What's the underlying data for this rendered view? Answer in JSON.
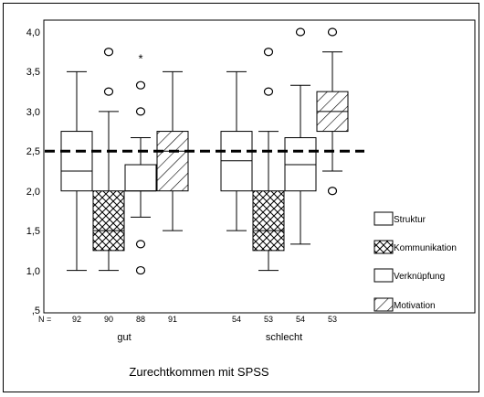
{
  "chart_data": {
    "type": "boxplot",
    "title": "Zurechtkommen mit SPSS",
    "ylim": [
      0.5,
      4.0
    ],
    "yticks": [
      "4,0",
      "3,5",
      "3,0",
      "2,5",
      "2,0",
      "1,5",
      "1,0",
      ",5"
    ],
    "ytick_values": [
      4.0,
      3.5,
      3.0,
      2.5,
      2.0,
      1.5,
      1.0,
      0.5
    ],
    "n_label": "N =",
    "reference_line": 2.5,
    "legend_position": "right",
    "series": [
      {
        "name": "Struktur",
        "pattern": "plain"
      },
      {
        "name": "Kommunikation",
        "pattern": "crosshatch"
      },
      {
        "name": "Verknüpfung",
        "pattern": "plain"
      },
      {
        "name": "Motivation",
        "pattern": "diagonal"
      }
    ],
    "groups": [
      {
        "label": "gut",
        "boxes": [
          {
            "series": "Struktur",
            "n": "92",
            "min": 1.0,
            "q1": 2.0,
            "median": 2.25,
            "q3": 2.75,
            "max": 3.5,
            "outliers": [],
            "extremes": []
          },
          {
            "series": "Kommunikation",
            "n": "90",
            "min": 1.0,
            "q1": 1.25,
            "median": 1.5,
            "q3": 2.0,
            "max": 3.0,
            "outliers": [
              3.25,
              3.75
            ],
            "extremes": []
          },
          {
            "series": "Verknüpfung",
            "n": "88",
            "min": 1.67,
            "q1": 2.0,
            "median": 2.0,
            "q3": 2.33,
            "max": 2.67,
            "outliers": [
              3.0,
              3.33,
              1.33,
              1.0
            ],
            "extremes": [
              3.67
            ]
          },
          {
            "series": "Motivation",
            "n": "91",
            "min": 1.5,
            "q1": 2.0,
            "median": 2.5,
            "q3": 2.75,
            "max": 3.5,
            "outliers": [],
            "extremes": []
          }
        ]
      },
      {
        "label": "schlecht",
        "boxes": [
          {
            "series": "Struktur",
            "n": "54",
            "min": 1.5,
            "q1": 2.0,
            "median": 2.38,
            "q3": 2.75,
            "max": 3.5,
            "outliers": [],
            "extremes": []
          },
          {
            "series": "Kommunikation",
            "n": "53",
            "min": 1.0,
            "q1": 1.25,
            "median": 1.5,
            "q3": 2.0,
            "max": 2.75,
            "outliers": [
              3.25,
              3.75
            ],
            "extremes": []
          },
          {
            "series": "Verknüpfung",
            "n": "54",
            "min": 1.33,
            "q1": 2.0,
            "median": 2.33,
            "q3": 2.67,
            "max": 3.33,
            "outliers": [
              4.0
            ],
            "extremes": []
          },
          {
            "series": "Motivation",
            "n": "53",
            "min": 2.25,
            "q1": 2.75,
            "median": 3.0,
            "q3": 3.25,
            "max": 3.75,
            "outliers": [
              4.0,
              2.0
            ],
            "extremes": []
          }
        ]
      }
    ]
  }
}
